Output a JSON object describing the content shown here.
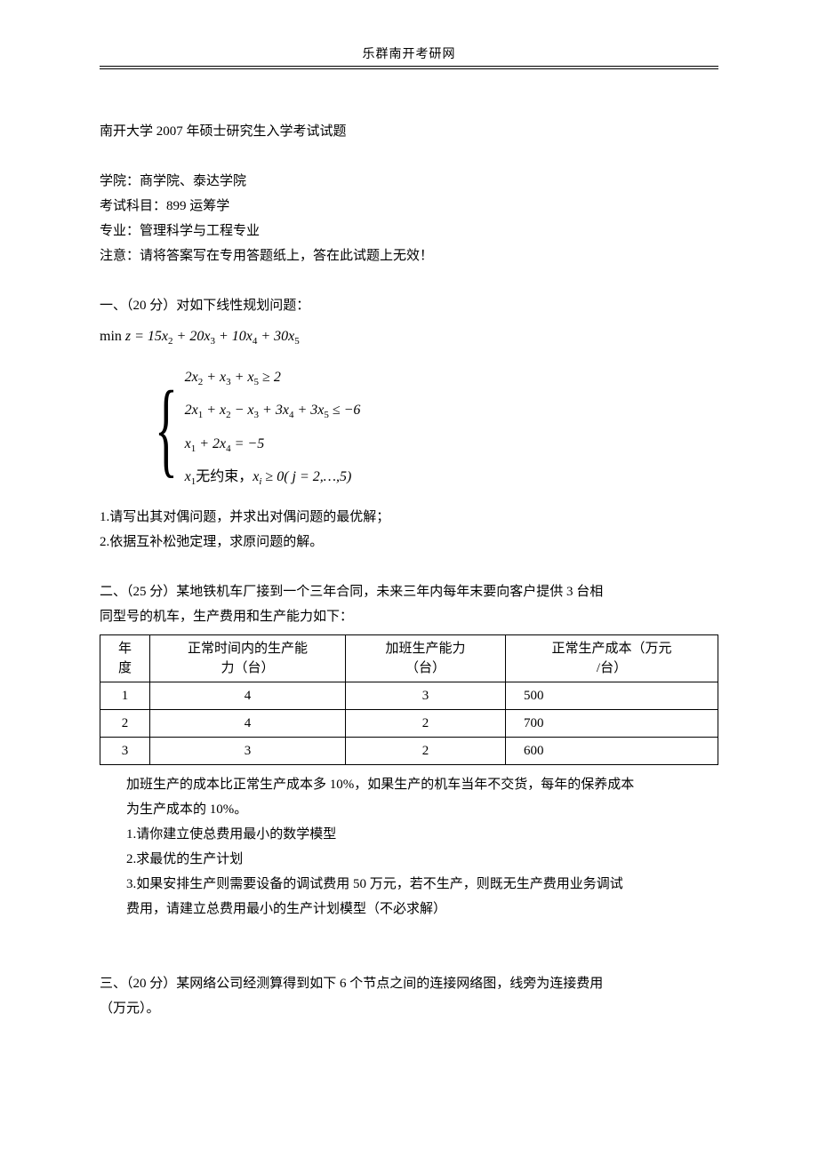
{
  "header": "乐群南开考研网",
  "title_line": "南开大学 2007 年硕士研究生入学考试试题",
  "meta": {
    "school_label": "学院：商学院、泰达学院",
    "subject_label": "考试科目：899 运筹学",
    "major_label": "专业：管理科学与工程专业",
    "note_label": "注意：请将答案写在专用答题纸上，答在此试题上无效！"
  },
  "q1": {
    "heading": "一、（20 分）对如下线性规划问题：",
    "objective": "min z = 15x₂ + 20x₃ + 10x₄ + 30x₅",
    "constraints": [
      "2x₂ + x₃ + x₅ ≥ 2",
      "2x₁ + x₂ − x₃ + 3x₄ + 3x₅ ≤ −6",
      "x₁ + 2x₄ = −5",
      "x₁无约束，xⱼ ≥ 0( j = 2,…,5)"
    ],
    "sub1": "1.请写出其对偶问题，并求出对偶问题的最优解；",
    "sub2": "2.依据互补松弛定理，求原问题的解。"
  },
  "q2": {
    "heading1": "二、（25 分）某地铁机车厂接到一个三年合同，未来三年内每年末要向客户提供 3 台相",
    "heading2": "同型号的机车，生产费用和生产能力如下：",
    "table": {
      "columns": [
        "年度",
        "正常时间内的生产能力（台）",
        "加班生产能力（台）",
        "正常生产成本（万元/台）"
      ],
      "col0a": "年",
      "col0b": "度",
      "col1a": "正常时间内的生产能",
      "col1b": "力（台）",
      "col2a": "加班生产能力",
      "col2b": "（台）",
      "col3a": "正常生产成本（万元",
      "col3b": "/台）",
      "rows": [
        [
          "1",
          "4",
          "3",
          "500"
        ],
        [
          "2",
          "4",
          "2",
          "700"
        ],
        [
          "3",
          "3",
          "2",
          "600"
        ]
      ]
    },
    "after1": "加班生产的成本比正常生产成本多 10%，如果生产的机车当年不交货，每年的保养成本",
    "after2": "为生产成本的 10%。",
    "sub1": "1.请你建立使总费用最小的数学模型",
    "sub2": "2.求最优的生产计划",
    "sub3a": "3.如果安排生产则需要设备的调试费用 50 万元，若不生产，则既无生产费用业务调试",
    "sub3b": "费用，请建立总费用最小的生产计划模型（不必求解）"
  },
  "q3": {
    "heading1": "三、（20 分）某网络公司经测算得到如下 6 个节点之间的连接网络图，线旁为连接费用",
    "heading2": "（万元）。"
  },
  "colors": {
    "text": "#000000",
    "background": "#ffffff",
    "rule": "#000000"
  }
}
